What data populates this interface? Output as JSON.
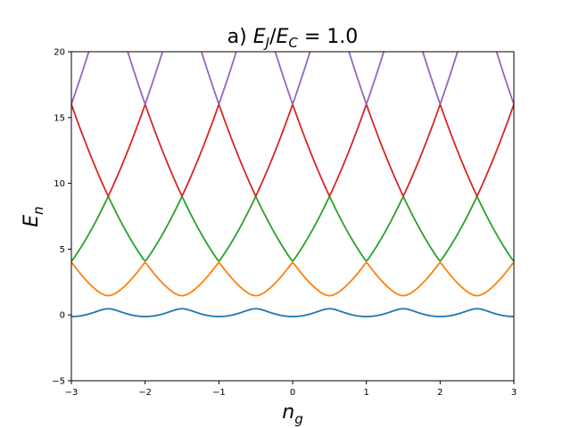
{
  "chart_data": {
    "type": "line",
    "title": {
      "prefix": "a) ",
      "var1": "E",
      "sub1": "J",
      "slash": "/",
      "var2": "E",
      "sub2": "C",
      "equals": " =  1.0"
    },
    "xlabel": {
      "var": "n",
      "sub": "g"
    },
    "ylabel": {
      "var": "E",
      "sub": "n"
    },
    "xlim": [
      -3,
      3
    ],
    "ylim": [
      -5,
      20
    ],
    "x_ticks": [
      "−3",
      "−2",
      "−1",
      "0",
      "1",
      "2",
      "3"
    ],
    "y_ticks": [
      "−5",
      "0",
      "5",
      "10",
      "15",
      "20"
    ],
    "grid": false,
    "legend": "none",
    "ej_over_ec": 1.0,
    "series_count": 5,
    "colors": [
      "#1f77b4",
      "#ff7f0e",
      "#2ca02c",
      "#d62728",
      "#9467bd"
    ],
    "key_points": {
      "level_0": {
        "max_at_half_integer": 0.45,
        "min_at_integer": -0.15
      },
      "level_1": {
        "max_at_integer": 3.95,
        "min_at_half_integer": 1.45
      },
      "level_2": {
        "max_at_half_integer": 8.95,
        "min_at_integer": 4.05
      },
      "level_3": {
        "max_at_integer": 15.95,
        "min_at_half_integer": 9.05
      },
      "level_4": {
        "min_at_integer": 16.05
      }
    }
  }
}
